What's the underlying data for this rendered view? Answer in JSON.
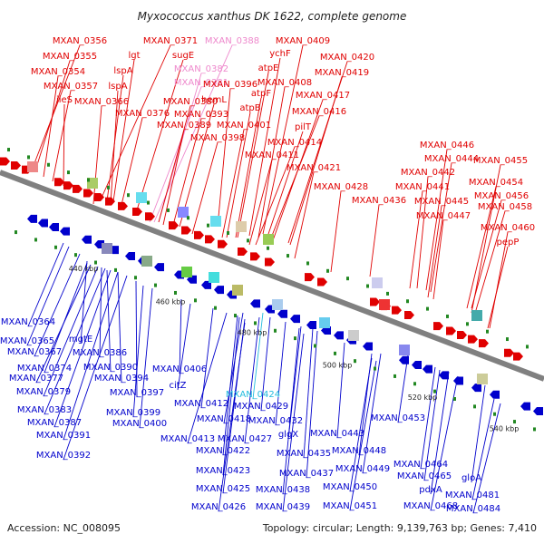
{
  "title": "Myxococcus xanthus DK 1622, complete genome",
  "footer": {
    "accession": "Accession: NC_008095",
    "stats": "Topology: circular; Length: 9,139,763 bp; Genes: 7,410"
  },
  "ticks": [
    "440 kbp",
    "460 kbp",
    "480 kbp",
    "500 kbp",
    "520 kbp",
    "540 kbp"
  ],
  "colors": {
    "forward": "#e00000",
    "reverse": "#0000cc",
    "highlight_pink": "#ee88cc",
    "highlight_cyan": "#22bbdd",
    "backbone": "#808080"
  },
  "top_labels": [
    {
      "text": "MXAN_0356",
      "color": "red"
    },
    {
      "text": "MXAN_0355",
      "color": "red"
    },
    {
      "text": "MXAN_0354",
      "color": "red"
    },
    {
      "text": "MXAN_0357",
      "color": "red"
    },
    {
      "text": "ileS",
      "color": "red"
    },
    {
      "text": "MXAN_0371",
      "color": "red"
    },
    {
      "text": "MXAN_0388",
      "color": "pink"
    },
    {
      "text": "lgt",
      "color": "red"
    },
    {
      "text": "sugE",
      "color": "red"
    },
    {
      "text": "MXAN_0382",
      "color": "pink"
    },
    {
      "text": "lspA",
      "color": "red"
    },
    {
      "text": "MXAN_0381",
      "color": "pink"
    },
    {
      "text": "lspA",
      "color": "red"
    },
    {
      "text": "MXAN_0366",
      "color": "red"
    },
    {
      "text": "MXAN_0380",
      "color": "red"
    },
    {
      "text": "MXAN_0376",
      "color": "red"
    },
    {
      "text": "MXAN_0389",
      "color": "red"
    },
    {
      "text": "hemL",
      "color": "red"
    },
    {
      "text": "MXAN_0393",
      "color": "red"
    },
    {
      "text": "MXAN_0396",
      "color": "red"
    },
    {
      "text": "MXAN_0398",
      "color": "red"
    },
    {
      "text": "MXAN_0409",
      "color": "red"
    },
    {
      "text": "ychF",
      "color": "red"
    },
    {
      "text": "atpE",
      "color": "red"
    },
    {
      "text": "MXAN_0408",
      "color": "red"
    },
    {
      "text": "atpF",
      "color": "red"
    },
    {
      "text": "atpB",
      "color": "red"
    },
    {
      "text": "MXAN_0401",
      "color": "red"
    },
    {
      "text": "MXAN_0420",
      "color": "red"
    },
    {
      "text": "MXAN_0419",
      "color": "red"
    },
    {
      "text": "MXAN_0417",
      "color": "red"
    },
    {
      "text": "MXAN_0416",
      "color": "red"
    },
    {
      "text": "pilT",
      "color": "red"
    },
    {
      "text": "MXAN_0414",
      "color": "red"
    },
    {
      "text": "MXAN_0411",
      "color": "red"
    },
    {
      "text": "MXAN_0421",
      "color": "red"
    },
    {
      "text": "MXAN_0428",
      "color": "red"
    },
    {
      "text": "MXAN_0436",
      "color": "red"
    },
    {
      "text": "MXAN_0446",
      "color": "red"
    },
    {
      "text": "MXAN_0444",
      "color": "red"
    },
    {
      "text": "MXAN_0455",
      "color": "red"
    },
    {
      "text": "MXAN_0442",
      "color": "red"
    },
    {
      "text": "MXAN_0441",
      "color": "red"
    },
    {
      "text": "MXAN_0454",
      "color": "red"
    },
    {
      "text": "MXAN_0445",
      "color": "red"
    },
    {
      "text": "MXAN_0456",
      "color": "red"
    },
    {
      "text": "MXAN_0447",
      "color": "red"
    },
    {
      "text": "MXAN_0458",
      "color": "red"
    },
    {
      "text": "MXAN_0460",
      "color": "red"
    },
    {
      "text": "pepP",
      "color": "red"
    }
  ],
  "bottom_labels": [
    {
      "text": "MXAN_0364",
      "color": "blue"
    },
    {
      "text": "MXAN_0365",
      "color": "blue"
    },
    {
      "text": "mgtE",
      "color": "blue"
    },
    {
      "text": "MXAN_0367",
      "color": "blue"
    },
    {
      "text": "MXAN_0386",
      "color": "blue"
    },
    {
      "text": "MXAN_0374",
      "color": "blue"
    },
    {
      "text": "MXAN_0390",
      "color": "blue"
    },
    {
      "text": "MXAN_0377",
      "color": "blue"
    },
    {
      "text": "MXAN_0394",
      "color": "blue"
    },
    {
      "text": "MXAN_0379",
      "color": "blue"
    },
    {
      "text": "MXAN_0397",
      "color": "blue"
    },
    {
      "text": "MXAN_0406",
      "color": "blue"
    },
    {
      "text": "citZ",
      "color": "blue"
    },
    {
      "text": "MXAN_0424",
      "color": "cyan"
    },
    {
      "text": "MXAN_0383",
      "color": "blue"
    },
    {
      "text": "MXAN_0399",
      "color": "blue"
    },
    {
      "text": "MXAN_0412",
      "color": "blue"
    },
    {
      "text": "MXAN_0429",
      "color": "blue"
    },
    {
      "text": "MXAN_0387",
      "color": "blue"
    },
    {
      "text": "MXAN_0400",
      "color": "blue"
    },
    {
      "text": "MXAN_0418",
      "color": "blue"
    },
    {
      "text": "MXAN_0432",
      "color": "blue"
    },
    {
      "text": "MXAN_0391",
      "color": "blue"
    },
    {
      "text": "MXAN_0413",
      "color": "blue"
    },
    {
      "text": "MXAN_0427",
      "color": "blue"
    },
    {
      "text": "glgX",
      "color": "blue"
    },
    {
      "text": "MXAN_0443",
      "color": "blue"
    },
    {
      "text": "MXAN_0453",
      "color": "blue"
    },
    {
      "text": "MXAN_0392",
      "color": "blue"
    },
    {
      "text": "MXAN_0422",
      "color": "blue"
    },
    {
      "text": "MXAN_0435",
      "color": "blue"
    },
    {
      "text": "MXAN_0448",
      "color": "blue"
    },
    {
      "text": "MXAN_0423",
      "color": "blue"
    },
    {
      "text": "MXAN_0437",
      "color": "blue"
    },
    {
      "text": "MXAN_0449",
      "color": "blue"
    },
    {
      "text": "MXAN_0464",
      "color": "blue"
    },
    {
      "text": "MXAN_0465",
      "color": "blue"
    },
    {
      "text": "gloA",
      "color": "blue"
    },
    {
      "text": "MXAN_0425",
      "color": "blue"
    },
    {
      "text": "MXAN_0438",
      "color": "blue"
    },
    {
      "text": "MXAN_0450",
      "color": "blue"
    },
    {
      "text": "pdxA",
      "color": "blue"
    },
    {
      "text": "MXAN_0481",
      "color": "blue"
    },
    {
      "text": "MXAN_0426",
      "color": "blue"
    },
    {
      "text": "MXAN_0439",
      "color": "blue"
    },
    {
      "text": "MXAN_0451",
      "color": "blue"
    },
    {
      "text": "MXAN_0468",
      "color": "blue"
    },
    {
      "text": "MXAN_0484",
      "color": "blue"
    }
  ]
}
